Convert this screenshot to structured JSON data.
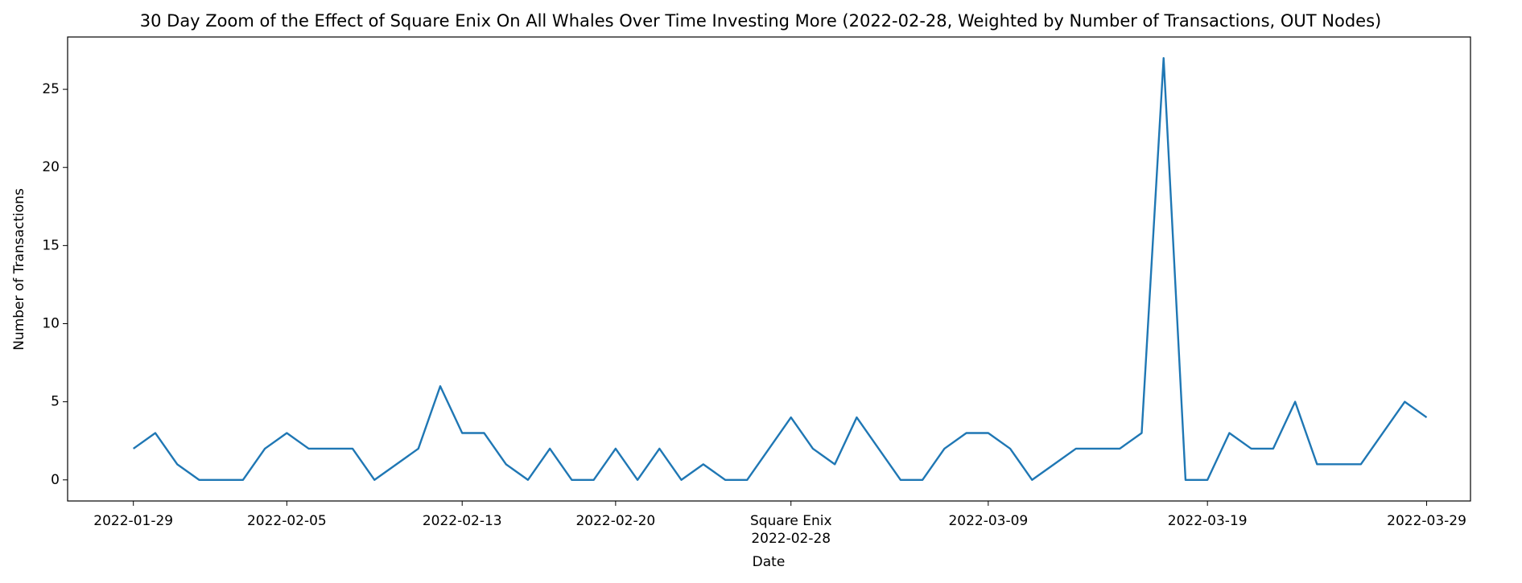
{
  "chart_data": {
    "type": "line",
    "title": "30 Day Zoom of the Effect of Square Enix On All Whales Over Time Investing More (2022-02-28, Weighted by Number of Transactions, OUT Nodes)",
    "x_label": "Date",
    "y_label": "Number of Transactions",
    "annotation": {
      "x": "2022-02-28",
      "text": "Square Enix"
    },
    "x": [
      "2022-01-29",
      "2022-01-30",
      "2022-01-31",
      "2022-02-01",
      "2022-02-02",
      "2022-02-03",
      "2022-02-04",
      "2022-02-05",
      "2022-02-06",
      "2022-02-07",
      "2022-02-08",
      "2022-02-09",
      "2022-02-10",
      "2022-02-11",
      "2022-02-12",
      "2022-02-13",
      "2022-02-14",
      "2022-02-15",
      "2022-02-16",
      "2022-02-17",
      "2022-02-18",
      "2022-02-19",
      "2022-02-20",
      "2022-02-21",
      "2022-02-22",
      "2022-02-23",
      "2022-02-24",
      "2022-02-25",
      "2022-02-26",
      "2022-02-27",
      "2022-02-28",
      "2022-03-01",
      "2022-03-02",
      "2022-03-03",
      "2022-03-04",
      "2022-03-05",
      "2022-03-06",
      "2022-03-07",
      "2022-03-08",
      "2022-03-09",
      "2022-03-10",
      "2022-03-11",
      "2022-03-12",
      "2022-03-13",
      "2022-03-14",
      "2022-03-15",
      "2022-03-16",
      "2022-03-17",
      "2022-03-18",
      "2022-03-19",
      "2022-03-20",
      "2022-03-21",
      "2022-03-22",
      "2022-03-23",
      "2022-03-24",
      "2022-03-25",
      "2022-03-26",
      "2022-03-27",
      "2022-03-28",
      "2022-03-29"
    ],
    "series": [
      {
        "color": "#1f77b4",
        "values": [
          2,
          3,
          1,
          0,
          0,
          0,
          2,
          3,
          2,
          2,
          2,
          0,
          1,
          2,
          6,
          3,
          3,
          1,
          0,
          2,
          0,
          0,
          2,
          0,
          2,
          0,
          1,
          0,
          0,
          2,
          4,
          2,
          1,
          4,
          2,
          0,
          0,
          2,
          3,
          3,
          2,
          0,
          1,
          2,
          2,
          2,
          3,
          27,
          0,
          0,
          3,
          2,
          2,
          5,
          1,
          1,
          1,
          3,
          5,
          4
        ]
      }
    ],
    "xlim": [
      "2022-01-26",
      "2022-03-31"
    ],
    "xticks": [
      "2022-01-29",
      "2022-02-05",
      "2022-02-13",
      "2022-02-20",
      "2022-02-28",
      "2022-03-09",
      "2022-03-19",
      "2022-03-29"
    ],
    "ylim": [
      -1.35,
      28.35
    ],
    "yticks": [
      0,
      5,
      10,
      15,
      20,
      25
    ],
    "grid": false
  }
}
